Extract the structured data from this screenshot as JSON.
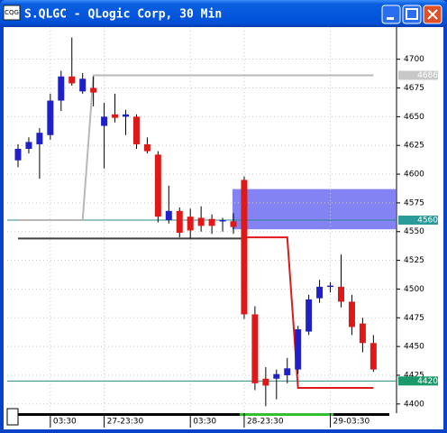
{
  "chart_data": {
    "type": "candlestick",
    "title": "S.QLGC - QLogic Corp, 30 Min",
    "categories": [
      null,
      null,
      null,
      "03:30",
      null,
      null,
      null,
      null,
      "27-23:30",
      null,
      null,
      null,
      null,
      null,
      null,
      null,
      "03:30",
      null,
      null,
      null,
      null,
      "28-23:30",
      null,
      null,
      null,
      null,
      null,
      null,
      null,
      "29-03:30",
      null,
      null,
      null,
      null
    ],
    "open": [
      4612,
      4622,
      4626,
      4634,
      4664,
      4685,
      4672,
      4675,
      4642,
      4652,
      4650,
      4650,
      4626,
      4617,
      4560,
      4568,
      4563,
      4562,
      4561,
      4559,
      4559,
      4595,
      4478,
      4422,
      4422,
      4425,
      4430,
      4463,
      4492,
      4502,
      4502,
      4489,
      4470,
      4453
    ],
    "high": [
      4626,
      4632,
      4640,
      4670,
      4690,
      4719,
      4688,
      4685,
      4662,
      4670,
      4656,
      4652,
      4632,
      4620,
      4590,
      4571,
      4570,
      4572,
      4565,
      4562,
      4566,
      4598,
      4485,
      4432,
      4430,
      4440,
      4468,
      4495,
      4508,
      4506,
      4530,
      4495,
      4475,
      4460
    ],
    "low": [
      4606,
      4618,
      4596,
      4630,
      4655,
      4677,
      4670,
      4659,
      4605,
      4645,
      4634,
      4622,
      4618,
      4558,
      4557,
      4545,
      4544,
      4550,
      4548,
      4550,
      4548,
      4474,
      4412,
      4398,
      4404,
      4418,
      4426,
      4460,
      4488,
      4497,
      4484,
      4460,
      4445,
      4428
    ],
    "close": [
      4622,
      4628,
      4636,
      4664,
      4685,
      4679,
      4683,
      4671,
      4650,
      4649,
      4652,
      4626,
      4620,
      4563,
      4568,
      4549,
      4551,
      4555,
      4555,
      4560,
      4554,
      4478,
      4418,
      4416,
      4426,
      4431,
      4465,
      4491,
      4502,
      4503,
      4489,
      4467,
      4453,
      4430
    ],
    "up_color": "#2020c8",
    "down_color": "#e01818",
    "series": [
      {
        "color": "#b8b8b8",
        "values": [
          4560,
          4560,
          4560,
          4560,
          4560,
          4560,
          4560,
          4686,
          4686,
          4686,
          4686,
          4686,
          4686,
          4686,
          4686,
          4686,
          4686,
          4686,
          4686,
          4686,
          4686,
          4686,
          4686,
          4686,
          4686,
          4686,
          4686,
          4686,
          4686,
          4686,
          4686,
          4686,
          4686,
          4686
        ]
      },
      {
        "color": "#404040",
        "values": [
          4544,
          4544,
          4544,
          4544,
          4544,
          4544,
          4544,
          4544,
          4544,
          4544,
          4544,
          4544,
          4544,
          4544,
          4544,
          4544,
          4544,
          4544,
          4544,
          4544,
          4544,
          4544,
          null,
          null,
          null,
          null,
          null,
          null,
          null,
          null,
          null,
          null,
          null,
          null
        ]
      },
      {
        "color": "#e01818",
        "values": [
          null,
          null,
          null,
          null,
          null,
          null,
          null,
          null,
          null,
          null,
          null,
          null,
          null,
          null,
          null,
          null,
          null,
          null,
          null,
          null,
          null,
          4545,
          4545,
          4545,
          4545,
          4545,
          4414,
          4414,
          4414,
          4414,
          4414,
          4414,
          4414,
          4414
        ]
      }
    ],
    "hlines": [
      4560,
      4420
    ],
    "hline_color": "#2a8a8a",
    "zone": [
      4552,
      4587
    ],
    "zone_color": "#5a5af0",
    "markers": [
      {
        "value": 4686,
        "color": "#c8c8c8"
      },
      {
        "value": 4560,
        "color": "#2a9a9a"
      },
      {
        "value": 4420,
        "color": "#1a9a6a"
      }
    ],
    "ylim": [
      4392,
      4728
    ],
    "yticks": [
      4400,
      4425,
      4450,
      4475,
      4500,
      4525,
      4550,
      4575,
      4600,
      4625,
      4650,
      4675,
      4700
    ],
    "grid": true
  }
}
